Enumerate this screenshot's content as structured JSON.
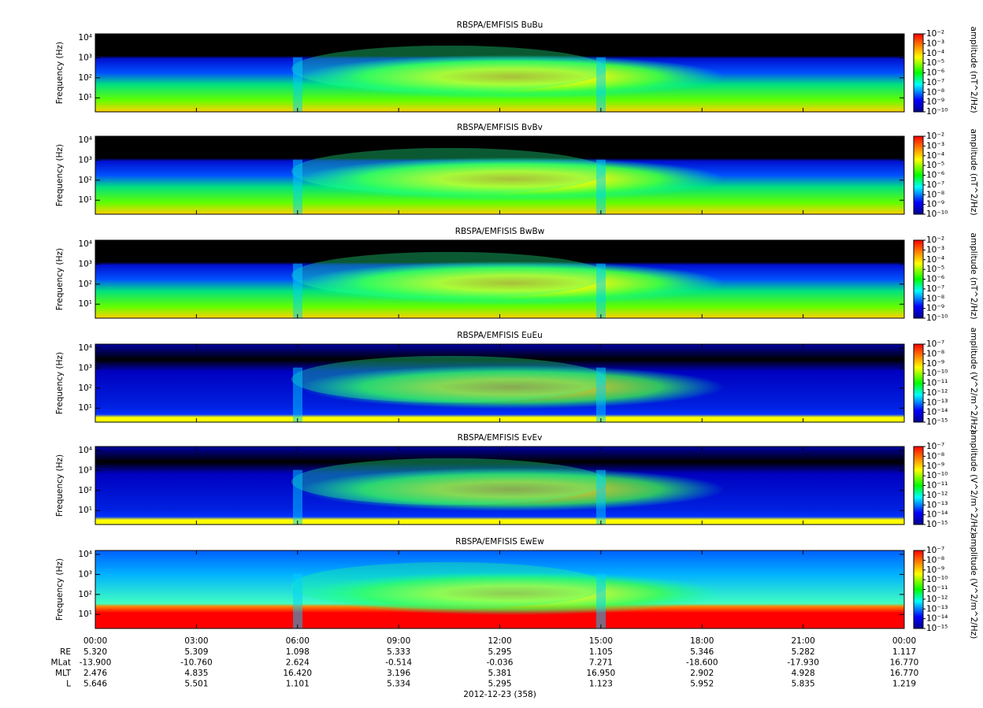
{
  "chart_data": [
    {
      "type": "spectrogram",
      "title": "RBSPA/EMFISIS  BuBu",
      "ylabel": "Frequency (Hz)",
      "log_y": true,
      "ylim": [
        2,
        15600
      ],
      "yticks": [
        {
          "value": 10,
          "label": "10¹"
        },
        {
          "value": 100,
          "label": "10²"
        },
        {
          "value": 1000,
          "label": "10³"
        },
        {
          "value": 10000,
          "label": "10⁴"
        }
      ],
      "colorbar_label": "amplitude (nT^2/Hz)",
      "clim": [
        1e-10,
        0.01
      ],
      "cticks": [
        {
          "value": 0.01,
          "label": "10⁻²"
        },
        {
          "value": 0.001,
          "label": "10⁻³"
        },
        {
          "value": 0.0001,
          "label": "10⁻⁴"
        },
        {
          "value": 1e-05,
          "label": "10⁻⁵"
        },
        {
          "value": 1e-06,
          "label": "10⁻⁶"
        },
        {
          "value": 1e-07,
          "label": "10⁻⁷"
        },
        {
          "value": 1e-08,
          "label": "10⁻⁸"
        },
        {
          "value": 1e-09,
          "label": "10⁻⁹"
        },
        {
          "value": 1e-10,
          "label": "10⁻¹⁰"
        }
      ]
    },
    {
      "type": "spectrogram",
      "title": "RBSPA/EMFISIS  BvBv",
      "ylabel": "Frequency (Hz)",
      "log_y": true,
      "ylim": [
        2,
        15600
      ],
      "yticks": [
        {
          "value": 10,
          "label": "10¹"
        },
        {
          "value": 100,
          "label": "10²"
        },
        {
          "value": 1000,
          "label": "10³"
        },
        {
          "value": 10000,
          "label": "10⁴"
        }
      ],
      "colorbar_label": "amplitude (nT^2/Hz)",
      "clim": [
        1e-10,
        0.01
      ],
      "cticks": [
        {
          "value": 0.01,
          "label": "10⁻²"
        },
        {
          "value": 0.001,
          "label": "10⁻³"
        },
        {
          "value": 0.0001,
          "label": "10⁻⁴"
        },
        {
          "value": 1e-05,
          "label": "10⁻⁵"
        },
        {
          "value": 1e-06,
          "label": "10⁻⁶"
        },
        {
          "value": 1e-07,
          "label": "10⁻⁷"
        },
        {
          "value": 1e-08,
          "label": "10⁻⁸"
        },
        {
          "value": 1e-09,
          "label": "10⁻⁹"
        },
        {
          "value": 1e-10,
          "label": "10⁻¹⁰"
        }
      ]
    },
    {
      "type": "spectrogram",
      "title": "RBSPA/EMFISIS  BwBw",
      "ylabel": "Frequency (Hz)",
      "log_y": true,
      "ylim": [
        2,
        15600
      ],
      "yticks": [
        {
          "value": 10,
          "label": "10¹"
        },
        {
          "value": 100,
          "label": "10²"
        },
        {
          "value": 1000,
          "label": "10³"
        },
        {
          "value": 10000,
          "label": "10⁴"
        }
      ],
      "colorbar_label": "amplitude (nT^2/Hz)",
      "clim": [
        1e-10,
        0.01
      ],
      "cticks": [
        {
          "value": 0.01,
          "label": "10⁻²"
        },
        {
          "value": 0.001,
          "label": "10⁻³"
        },
        {
          "value": 0.0001,
          "label": "10⁻⁴"
        },
        {
          "value": 1e-05,
          "label": "10⁻⁵"
        },
        {
          "value": 1e-06,
          "label": "10⁻⁶"
        },
        {
          "value": 1e-07,
          "label": "10⁻⁷"
        },
        {
          "value": 1e-08,
          "label": "10⁻⁸"
        },
        {
          "value": 1e-09,
          "label": "10⁻⁹"
        },
        {
          "value": 1e-10,
          "label": "10⁻¹⁰"
        }
      ]
    },
    {
      "type": "spectrogram",
      "title": "RBSPA/EMFISIS  EuEu",
      "ylabel": "Frequency (Hz)",
      "log_y": true,
      "ylim": [
        2,
        15600
      ],
      "yticks": [
        {
          "value": 10,
          "label": "10¹"
        },
        {
          "value": 100,
          "label": "10²"
        },
        {
          "value": 1000,
          "label": "10³"
        },
        {
          "value": 10000,
          "label": "10⁴"
        }
      ],
      "colorbar_label": "amplitude (V^2/m^2/Hz)",
      "clim": [
        1e-15,
        1e-07
      ],
      "cticks": [
        {
          "value": 1e-07,
          "label": "10⁻⁷"
        },
        {
          "value": 1e-08,
          "label": "10⁻⁸"
        },
        {
          "value": 1e-09,
          "label": "10⁻⁹"
        },
        {
          "value": 1e-10,
          "label": "10⁻¹⁰"
        },
        {
          "value": 1e-11,
          "label": "10⁻¹¹"
        },
        {
          "value": 1e-12,
          "label": "10⁻¹²"
        },
        {
          "value": 1e-13,
          "label": "10⁻¹³"
        },
        {
          "value": 1e-14,
          "label": "10⁻¹⁴"
        },
        {
          "value": 1e-15,
          "label": "10⁻¹⁵"
        }
      ]
    },
    {
      "type": "spectrogram",
      "title": "RBSPA/EMFISIS  EvEv",
      "ylabel": "Frequency (Hz)",
      "log_y": true,
      "ylim": [
        2,
        15600
      ],
      "yticks": [
        {
          "value": 10,
          "label": "10¹"
        },
        {
          "value": 100,
          "label": "10²"
        },
        {
          "value": 1000,
          "label": "10³"
        },
        {
          "value": 10000,
          "label": "10⁴"
        }
      ],
      "colorbar_label": "amplitude (V^2/m^2/Hz)",
      "clim": [
        1e-15,
        1e-07
      ],
      "cticks": [
        {
          "value": 1e-07,
          "label": "10⁻⁷"
        },
        {
          "value": 1e-08,
          "label": "10⁻⁸"
        },
        {
          "value": 1e-09,
          "label": "10⁻⁹"
        },
        {
          "value": 1e-10,
          "label": "10⁻¹⁰"
        },
        {
          "value": 1e-11,
          "label": "10⁻¹¹"
        },
        {
          "value": 1e-12,
          "label": "10⁻¹²"
        },
        {
          "value": 1e-13,
          "label": "10⁻¹³"
        },
        {
          "value": 1e-14,
          "label": "10⁻¹⁴"
        },
        {
          "value": 1e-15,
          "label": "10⁻¹⁵"
        }
      ]
    },
    {
      "type": "spectrogram",
      "title": "RBSPA/EMFISIS  EwEw",
      "ylabel": "Frequency (Hz)",
      "log_y": true,
      "ylim": [
        2,
        15600
      ],
      "yticks": [
        {
          "value": 10,
          "label": "10¹"
        },
        {
          "value": 100,
          "label": "10²"
        },
        {
          "value": 1000,
          "label": "10³"
        },
        {
          "value": 10000,
          "label": "10⁴"
        }
      ],
      "colorbar_label": "amplitude (V^2/m^2/Hz)",
      "clim": [
        1e-15,
        1e-07
      ],
      "cticks": [
        {
          "value": 1e-07,
          "label": "10⁻⁷"
        },
        {
          "value": 1e-08,
          "label": "10⁻⁸"
        },
        {
          "value": 1e-09,
          "label": "10⁻⁹"
        },
        {
          "value": 1e-10,
          "label": "10⁻¹⁰"
        },
        {
          "value": 1e-11,
          "label": "10⁻¹¹"
        },
        {
          "value": 1e-12,
          "label": "10⁻¹²"
        },
        {
          "value": 1e-13,
          "label": "10⁻¹³"
        },
        {
          "value": 1e-14,
          "label": "10⁻¹⁴"
        },
        {
          "value": 1e-15,
          "label": "10⁻¹⁵"
        }
      ]
    }
  ],
  "x_axis": {
    "xlim": [
      0,
      24
    ],
    "xticks": [
      {
        "value": 0,
        "label": "00:00"
      },
      {
        "value": 3,
        "label": "03:00"
      },
      {
        "value": 6,
        "label": "06:00"
      },
      {
        "value": 9,
        "label": "09:00"
      },
      {
        "value": 12,
        "label": "12:00"
      },
      {
        "value": 15,
        "label": "15:00"
      },
      {
        "value": 18,
        "label": "18:00"
      },
      {
        "value": 21,
        "label": "21:00"
      },
      {
        "value": 24,
        "label": "00:00"
      }
    ],
    "rows": [
      {
        "label": "RE",
        "values": [
          "5.320",
          "5.309",
          "1.098",
          "5.333",
          "5.295",
          "1.105",
          "5.346",
          "5.282",
          "1.117"
        ]
      },
      {
        "label": "MLat",
        "values": [
          "-13.900",
          "-10.760",
          "2.624",
          "-0.514",
          "-0.036",
          "7.271",
          "-18.600",
          "-17.930",
          "16.770"
        ]
      },
      {
        "label": "MLT",
        "values": [
          "2.476",
          "4.835",
          "16.420",
          "3.196",
          "5.381",
          "16.950",
          "2.902",
          "4.928",
          "16.770"
        ]
      },
      {
        "label": "L",
        "values": [
          "5.646",
          "5.501",
          "1.101",
          "5.334",
          "5.295",
          "1.123",
          "5.952",
          "5.835",
          "1.219"
        ]
      }
    ],
    "date": "2012-12-23 (358)"
  }
}
